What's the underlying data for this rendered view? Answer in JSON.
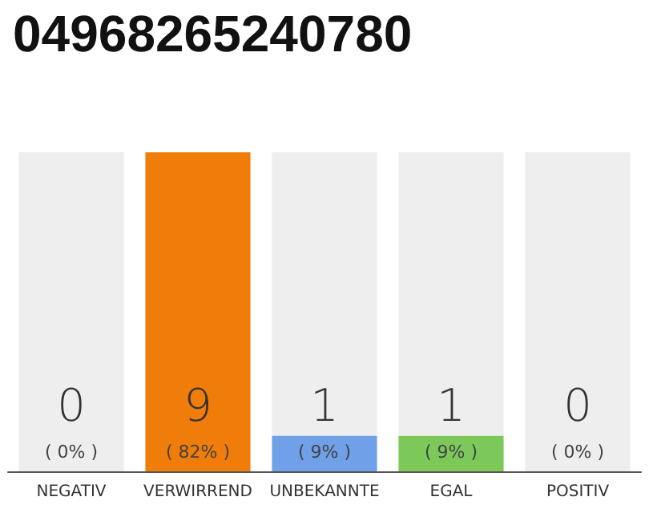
{
  "chart_data": {
    "type": "bar",
    "title": "04968265240780",
    "categories": [
      "NEGATIV",
      "VERWIRREND",
      "UNBEKANNTE",
      "EGAL",
      "POSITIV"
    ],
    "stacked": true,
    "series": [
      {
        "colors": [
          "#eeeeee",
          "#f07c0a",
          "#6fa0e8",
          "#7cc95a",
          "#eeeeee"
        ],
        "values": [
          0,
          9,
          1,
          1,
          0
        ],
        "value_labels": [
          "0\n( 0% )",
          "9\n( 82% )",
          "1\n( 9% )",
          "1\n( 9% )",
          "0\n( 0% )"
        ]
      },
      {
        "color": "#eeeeee",
        "values": [
          9,
          0,
          8,
          8,
          9
        ]
      }
    ],
    "ylim": [
      0,
      9
    ],
    "tick_labels": "x",
    "grid": false
  }
}
